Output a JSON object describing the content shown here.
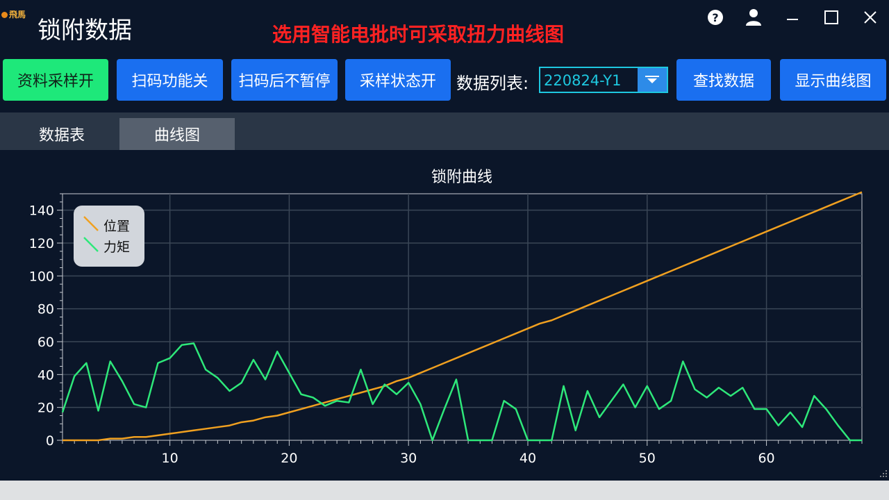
{
  "app": {
    "logo_text": "飛馬",
    "title": "锁附数据",
    "notice": "选用智能电批时可采取扭力曲线图"
  },
  "toolbar": {
    "buttons": [
      {
        "label": "资料采样开",
        "color": "#1ee87a"
      },
      {
        "label": "扫码功能关",
        "color": "#1a6ff0"
      },
      {
        "label": "扫码后不暂停",
        "color": "#1a6ff0"
      },
      {
        "label": "采样状态开",
        "color": "#1a6ff0"
      }
    ],
    "list_label": "数据列表:",
    "list_value": "220824-Y1",
    "find_label": "查找数据",
    "show_curve_label": "显示曲线图"
  },
  "tabs": [
    {
      "label": "数据表",
      "active": false
    },
    {
      "label": "曲线图",
      "active": true
    }
  ],
  "chart_data": {
    "type": "line",
    "title": "锁附曲线",
    "xlabel": "",
    "ylabel": "",
    "xlim": [
      1,
      68
    ],
    "ylim": [
      0,
      150
    ],
    "xticks": [
      10,
      20,
      30,
      40,
      50,
      60
    ],
    "yticks": [
      0,
      20,
      40,
      60,
      80,
      100,
      120,
      140
    ],
    "grid": true,
    "legend": "top-left",
    "x": [
      1,
      2,
      3,
      4,
      5,
      6,
      7,
      8,
      9,
      10,
      11,
      12,
      13,
      14,
      15,
      16,
      17,
      18,
      19,
      20,
      21,
      22,
      23,
      24,
      25,
      26,
      27,
      28,
      29,
      30,
      31,
      32,
      33,
      34,
      35,
      36,
      37,
      38,
      39,
      40,
      41,
      42,
      43,
      44,
      45,
      46,
      47,
      48,
      49,
      50,
      51,
      52,
      53,
      54,
      55,
      56,
      57,
      58,
      59,
      60,
      61,
      62,
      63,
      64,
      65,
      66,
      67,
      68
    ],
    "series": [
      {
        "name": "位置",
        "color": "#f0a020",
        "values": [
          0,
          0,
          0,
          0,
          1,
          1,
          2,
          2,
          3,
          4,
          5,
          6,
          7,
          8,
          9,
          11,
          12,
          14,
          15,
          17,
          19,
          21,
          23,
          25,
          27,
          29,
          31,
          33,
          36,
          38,
          41,
          44,
          47,
          50,
          53,
          56,
          59,
          62,
          65,
          68,
          71,
          73,
          76,
          79,
          82,
          85,
          88,
          91,
          94,
          97,
          100,
          103,
          106,
          109,
          112,
          115,
          118,
          121,
          124,
          127,
          130,
          133,
          136,
          139,
          142,
          145,
          148,
          151
        ]
      },
      {
        "name": "力矩",
        "color": "#2ee87a",
        "values": [
          17,
          39,
          47,
          18,
          48,
          36,
          22,
          20,
          47,
          50,
          58,
          59,
          43,
          38,
          30,
          35,
          49,
          37,
          54,
          41,
          28,
          26,
          21,
          24,
          23,
          43,
          22,
          34,
          28,
          35,
          22,
          0,
          19,
          37,
          0,
          0,
          0,
          24,
          19,
          0,
          0,
          0,
          33,
          6,
          30,
          14,
          24,
          34,
          20,
          33,
          19,
          24,
          48,
          31,
          26,
          32,
          27,
          32,
          19,
          19,
          9,
          17,
          8,
          27,
          19,
          9,
          0,
          0
        ]
      }
    ]
  }
}
